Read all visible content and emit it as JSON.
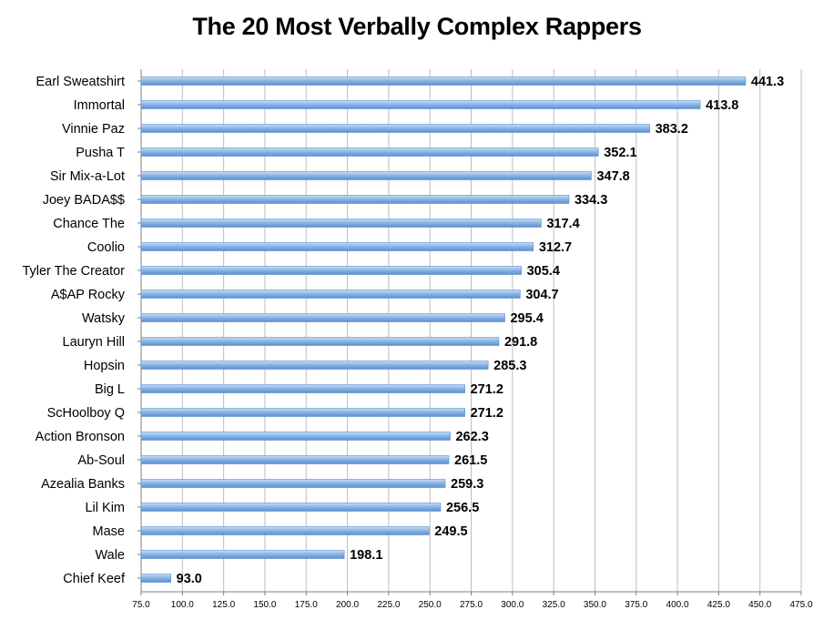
{
  "chart_data": {
    "type": "bar",
    "orientation": "horizontal",
    "title": "The 20 Most Verbally Complex Rappers",
    "categories": [
      "Earl Sweatshirt",
      "Immortal",
      "Vinnie Paz",
      "Pusha T",
      "Sir Mix-a-Lot",
      "Joey BADA$$",
      "Chance The",
      "Coolio",
      "Tyler The Creator",
      "A$AP Rocky",
      "Watsky",
      "Lauryn Hill",
      "Hopsin",
      "Big L",
      "ScHoolboy Q",
      "Action Bronson",
      "Ab-Soul",
      "Azealia Banks",
      "Lil Kim",
      "Mase",
      "Wale",
      "Chief Keef"
    ],
    "values": [
      441.3,
      413.8,
      383.2,
      352.1,
      347.8,
      334.3,
      317.4,
      312.7,
      305.4,
      304.7,
      295.4,
      291.8,
      285.3,
      271.2,
      271.2,
      262.3,
      261.5,
      259.3,
      256.5,
      249.5,
      198.1,
      93.0
    ],
    "value_labels": [
      "441.3",
      "413.8",
      "383.2",
      "352.1",
      "347.8",
      "334.3",
      "317.4",
      "312.7",
      "305.4",
      "304.7",
      "295.4",
      "291.8",
      "285.3",
      "271.2",
      "271.2",
      "262.3",
      "261.5",
      "259.3",
      "256.5",
      "249.5",
      "198.1",
      "93.0"
    ],
    "xlim": [
      75,
      475
    ],
    "xticks": [
      75,
      100,
      125,
      150,
      175,
      200,
      225,
      250,
      275,
      300,
      325,
      350,
      375,
      400,
      425,
      450,
      475
    ],
    "xtick_labels": [
      "75.0",
      "100.0",
      "125.0",
      "150.0",
      "175.0",
      "200.0",
      "225.0",
      "250.0",
      "275.0",
      "300.0",
      "325.0",
      "350.0",
      "375.0",
      "400.0",
      "425.0",
      "450.0",
      "475.0"
    ],
    "xlabel": "",
    "ylabel": "",
    "grid": "vertical",
    "legend": "none",
    "colors": {
      "bar_light": "#c9def5",
      "bar_mid": "#8cb7e6",
      "bar_dark": "#5b8fcf",
      "grid": "#bdbdbd",
      "axis": "#7f7f7f"
    }
  }
}
